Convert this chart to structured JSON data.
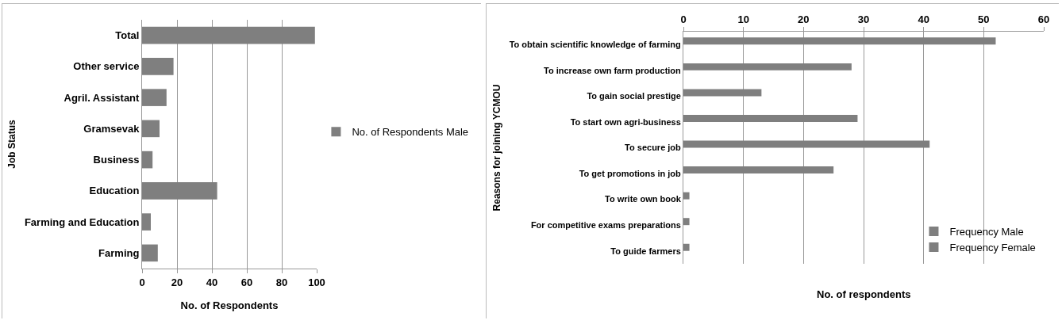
{
  "chart_data": [
    {
      "type": "bar",
      "orientation": "horizontal",
      "xlabel": "No. of Respondents",
      "ylabel": "Job Status",
      "categories": [
        "Total",
        "Other service",
        "Agril. Assistant",
        "Gramsevak",
        "Business",
        "Education",
        "Farming and Education",
        "Farming"
      ],
      "series": [
        {
          "name": "No. of Respondents Male",
          "color": "#7f7f7f",
          "values": [
            99,
            18,
            14,
            10,
            6,
            43,
            5,
            9
          ]
        }
      ],
      "xlim": [
        0,
        100
      ],
      "xticks": [
        0,
        20,
        40,
        60,
        80,
        100
      ],
      "grid": "x",
      "legend": "right"
    },
    {
      "type": "bar",
      "orientation": "horizontal",
      "xlabel": "No. of respondents",
      "ylabel": "Reasons for joining YCMOU",
      "categories": [
        "To obtain scientific knowledge of farming",
        "To increase own farm production",
        "To gain social prestige",
        "To start own agri-business",
        "To secure job",
        "To get promotions in job",
        "To write own book",
        "For competitive exams preparations",
        "To guide farmers"
      ],
      "series": [
        {
          "name": "Frequency Male",
          "color": "#7f7f7f",
          "axis": "x2",
          "values": [
            52,
            28,
            13,
            29,
            41,
            25,
            1,
            1,
            1
          ]
        },
        {
          "name": "Frequency Female",
          "color": "#7f7f7f",
          "axis": "x2",
          "values": [
            null,
            null,
            null,
            null,
            null,
            null,
            null,
            null,
            null
          ]
        }
      ],
      "x2lim": [
        0,
        60
      ],
      "x2ticks": [
        0,
        10,
        20,
        30,
        40,
        50,
        60
      ],
      "grid": "x",
      "legend": "bottom right"
    }
  ]
}
